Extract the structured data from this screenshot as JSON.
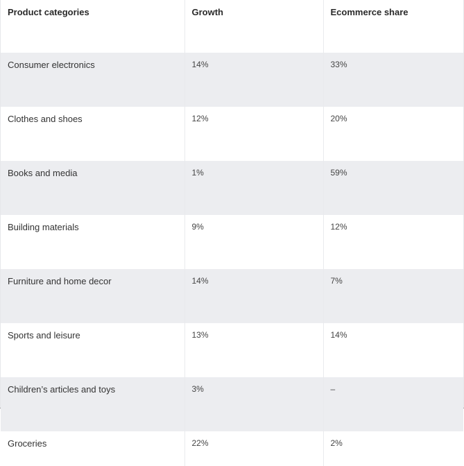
{
  "table": {
    "headers": [
      "Product categories",
      "Growth",
      "Ecommerce share"
    ],
    "rows": [
      {
        "category": "Consumer electronics",
        "growth": "14%",
        "share": "33%"
      },
      {
        "category": "Clothes and shoes",
        "growth": "12%",
        "share": "20%"
      },
      {
        "category": "Books and media",
        "growth": "1%",
        "share": "59%"
      },
      {
        "category": "Building materials",
        "growth": "9%",
        "share": "12%"
      },
      {
        "category": "Furniture and home decor",
        "growth": "14%",
        "share": "7%"
      },
      {
        "category": "Sports and leisure",
        "growth": "13%",
        "share": "14%"
      },
      {
        "category": "Children’s articles and toys",
        "growth": "3%",
        "share": "–"
      },
      {
        "category": "Groceries",
        "growth": "22%",
        "share": "2%"
      }
    ]
  }
}
